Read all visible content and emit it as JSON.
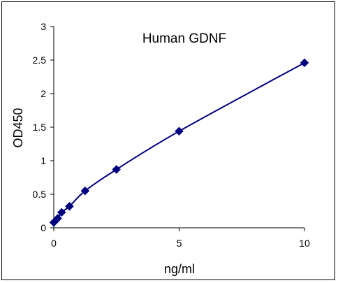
{
  "chart_data": {
    "type": "scatter",
    "title": "Human  GDNF",
    "xlabel": "ng/ml",
    "ylabel": "OD450",
    "xlim": [
      0,
      10
    ],
    "ylim": [
      0,
      3
    ],
    "x_ticks": [
      "0",
      "5",
      "10"
    ],
    "y_ticks": [
      "0",
      "0.5",
      "1",
      "1.5",
      "2",
      "2.5",
      "3"
    ],
    "grid": false,
    "legend": "none",
    "fit_line": true,
    "series": [
      {
        "x": [
          0,
          0.156,
          0.3125,
          0.625,
          1.25,
          2.5,
          5,
          10
        ],
        "y": [
          0.08,
          0.14,
          0.23,
          0.32,
          0.55,
          0.87,
          1.44,
          2.46
        ]
      }
    ],
    "colors": {
      "marker": "#00007f",
      "line": "#00007f",
      "axes": "#000000"
    }
  }
}
